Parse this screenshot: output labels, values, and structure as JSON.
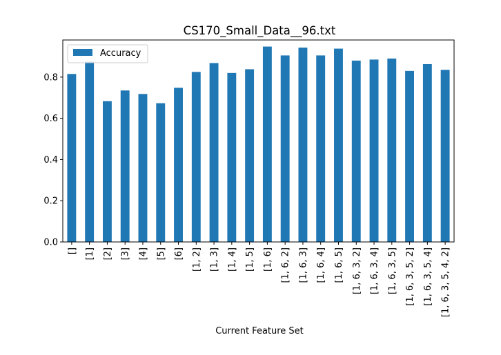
{
  "chart_data": {
    "type": "bar",
    "title": "CS170_Small_Data__96.txt",
    "xlabel": "Current Feature Set",
    "ylabel": "",
    "categories": [
      "[]",
      "[1]",
      "[2]",
      "[3]",
      "[4]",
      "[5]",
      "[6]",
      "[1, 2]",
      "[1, 3]",
      "[1, 4]",
      "[1, 5]",
      "[1, 6]",
      "[1, 6, 2]",
      "[1, 6, 3]",
      "[1, 6, 4]",
      "[1, 6, 5]",
      "[1, 6, 3, 2]",
      "[1, 6, 3, 4]",
      "[1, 6, 3, 5]",
      "[1, 6, 3, 5, 2]",
      "[1, 6, 3, 5, 4]",
      "[1, 6, 3, 5, 4, 2]"
    ],
    "series": [
      {
        "name": "Accuracy",
        "color": "#1f77b4",
        "values": [
          0.815,
          0.875,
          0.683,
          0.735,
          0.718,
          0.673,
          0.748,
          0.825,
          0.868,
          0.82,
          0.838,
          0.948,
          0.905,
          0.943,
          0.905,
          0.938,
          0.88,
          0.885,
          0.89,
          0.83,
          0.863,
          0.835
        ]
      }
    ],
    "ylim": [
      0,
      0.98
    ],
    "yticks": [
      "0.0",
      "0.2",
      "0.4",
      "0.6",
      "0.8"
    ],
    "grid": false,
    "legend": "upper-left"
  }
}
